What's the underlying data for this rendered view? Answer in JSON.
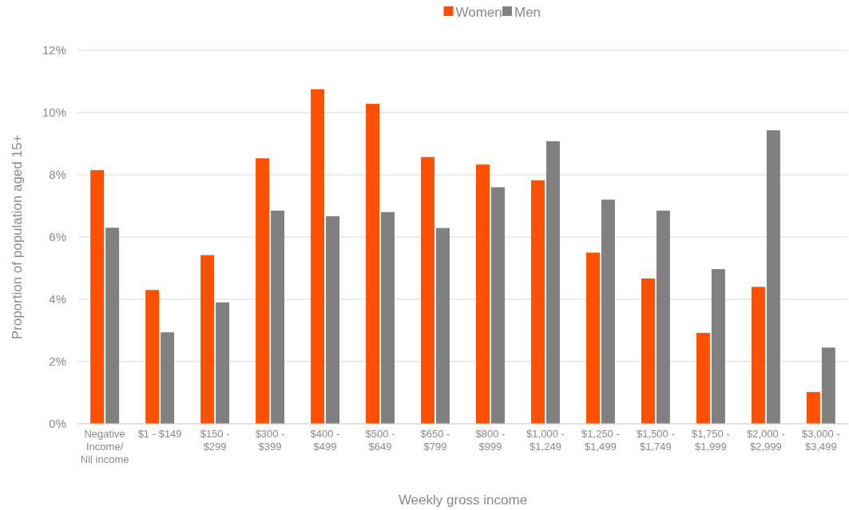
{
  "chart_data": {
    "type": "bar",
    "xlabel": "Weekly gross income",
    "ylabel": "Proportion of population aged 15+",
    "categories": [
      "Negative Income/ Nil income",
      "$1 - $149",
      "$150 - $299",
      "$300 - $399",
      "$400 - $499",
      "$500 - $649",
      "$650 - $799",
      "$800 - $999",
      "$1,000 - $1,249",
      "$1,250 - $1,499",
      "$1,500 - $1,749",
      "$1,750 - $1,999",
      "$2,000 - $2,999",
      "$3,000 - $3,499"
    ],
    "series": [
      {
        "name": "Women",
        "color": "#ff5000",
        "values": [
          8.15,
          4.3,
          5.42,
          8.53,
          10.75,
          10.28,
          8.57,
          8.33,
          7.82,
          5.5,
          4.67,
          2.92,
          4.4,
          1.02
        ]
      },
      {
        "name": "Men",
        "color": "#808080",
        "values": [
          6.3,
          2.94,
          3.9,
          6.85,
          6.67,
          6.8,
          6.29,
          7.6,
          9.08,
          7.2,
          6.85,
          4.97,
          9.43,
          2.45
        ]
      }
    ],
    "ylim": [
      0,
      12
    ],
    "yticks": [
      {
        "value": 0,
        "label": "0%"
      },
      {
        "value": 2,
        "label": "2%"
      },
      {
        "value": 4,
        "label": "4%"
      },
      {
        "value": 6,
        "label": "6%"
      },
      {
        "value": 8,
        "label": "8%"
      },
      {
        "value": 10,
        "label": "10%"
      },
      {
        "value": 12,
        "label": "12%"
      }
    ],
    "grid": "y",
    "legend": "top"
  }
}
